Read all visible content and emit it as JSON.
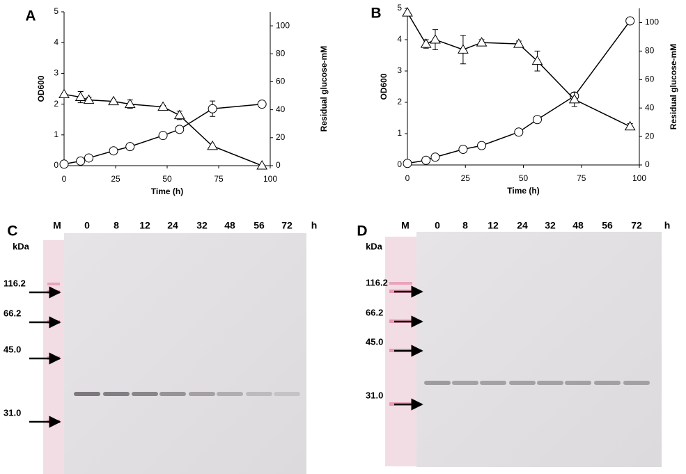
{
  "chart_data": [
    {
      "type": "line",
      "panel": "A",
      "x_label": "Time (h)",
      "y_label": "OD600",
      "y2_label": "Residual glucose-mM",
      "x": [
        0,
        8,
        12,
        24,
        32,
        48,
        56,
        72,
        96
      ],
      "xlim": [
        0,
        100
      ],
      "xticks": [
        0,
        25,
        50,
        75,
        100
      ],
      "ylim": [
        0,
        5
      ],
      "yticks": [
        0,
        1,
        2,
        3,
        4,
        5
      ],
      "y2lim": [
        0,
        110
      ],
      "y2ticks": [
        0,
        20,
        40,
        60,
        80,
        100
      ],
      "series": [
        {
          "marker": "circle",
          "color": "#000000",
          "values": [
            0.05,
            0.15,
            0.25,
            0.48,
            0.62,
            0.98,
            1.18,
            1.85,
            2.0
          ],
          "errors": [
            0,
            0,
            0,
            0,
            0,
            0.05,
            0,
            0.25,
            0.1
          ]
        },
        {
          "marker": "triangle",
          "axis": "y2",
          "color": "#000000",
          "values": [
            51,
            49,
            47,
            46,
            44,
            42,
            36,
            14,
            0
          ],
          "errors": [
            0,
            4,
            2,
            1,
            3,
            1,
            3,
            0,
            0
          ]
        }
      ]
    },
    {
      "type": "line",
      "panel": "B",
      "x_label": "Time (h)",
      "y_label": "OD600",
      "y2_label": "Residual glucose-mM",
      "x": [
        0,
        8,
        12,
        24,
        32,
        48,
        56,
        72,
        96
      ],
      "xlim": [
        0,
        100
      ],
      "xticks": [
        0,
        25,
        50,
        75,
        100
      ],
      "ylim": [
        0,
        5
      ],
      "yticks": [
        0,
        1,
        2,
        3,
        4,
        5
      ],
      "y2lim": [
        0,
        110
      ],
      "y2ticks": [
        0,
        20,
        40,
        60,
        80,
        100
      ],
      "series": [
        {
          "marker": "circle",
          "color": "#000000",
          "values": [
            0.05,
            0.15,
            0.25,
            0.5,
            0.62,
            1.05,
            1.45,
            2.2,
            4.6
          ],
          "errors": [
            0,
            0,
            0,
            0,
            0,
            0,
            0,
            0.05,
            0.1
          ]
        },
        {
          "marker": "triangle",
          "axis": "y2",
          "color": "#000000",
          "values": [
            107,
            85,
            88,
            81,
            86,
            85,
            73,
            46,
            27
          ],
          "errors": [
            0,
            3,
            7,
            10,
            2,
            2,
            7,
            5,
            2
          ]
        }
      ]
    }
  ],
  "blots": [
    {
      "panel": "C",
      "marker_lane": "M",
      "lanes": [
        "0",
        "8",
        "12",
        "24",
        "32",
        "48",
        "56",
        "72"
      ],
      "time_unit": "h",
      "unit_label": "kDa",
      "markers": [
        "116.2",
        "66.2",
        "45.0",
        "31.0"
      ]
    },
    {
      "panel": "D",
      "marker_lane": "M",
      "lanes": [
        "0",
        "8",
        "12",
        "24",
        "32",
        "48",
        "56",
        "72"
      ],
      "time_unit": "h",
      "unit_label": "kDa",
      "markers": [
        "116.2",
        "66.2",
        "45.0",
        "31.0"
      ]
    }
  ]
}
